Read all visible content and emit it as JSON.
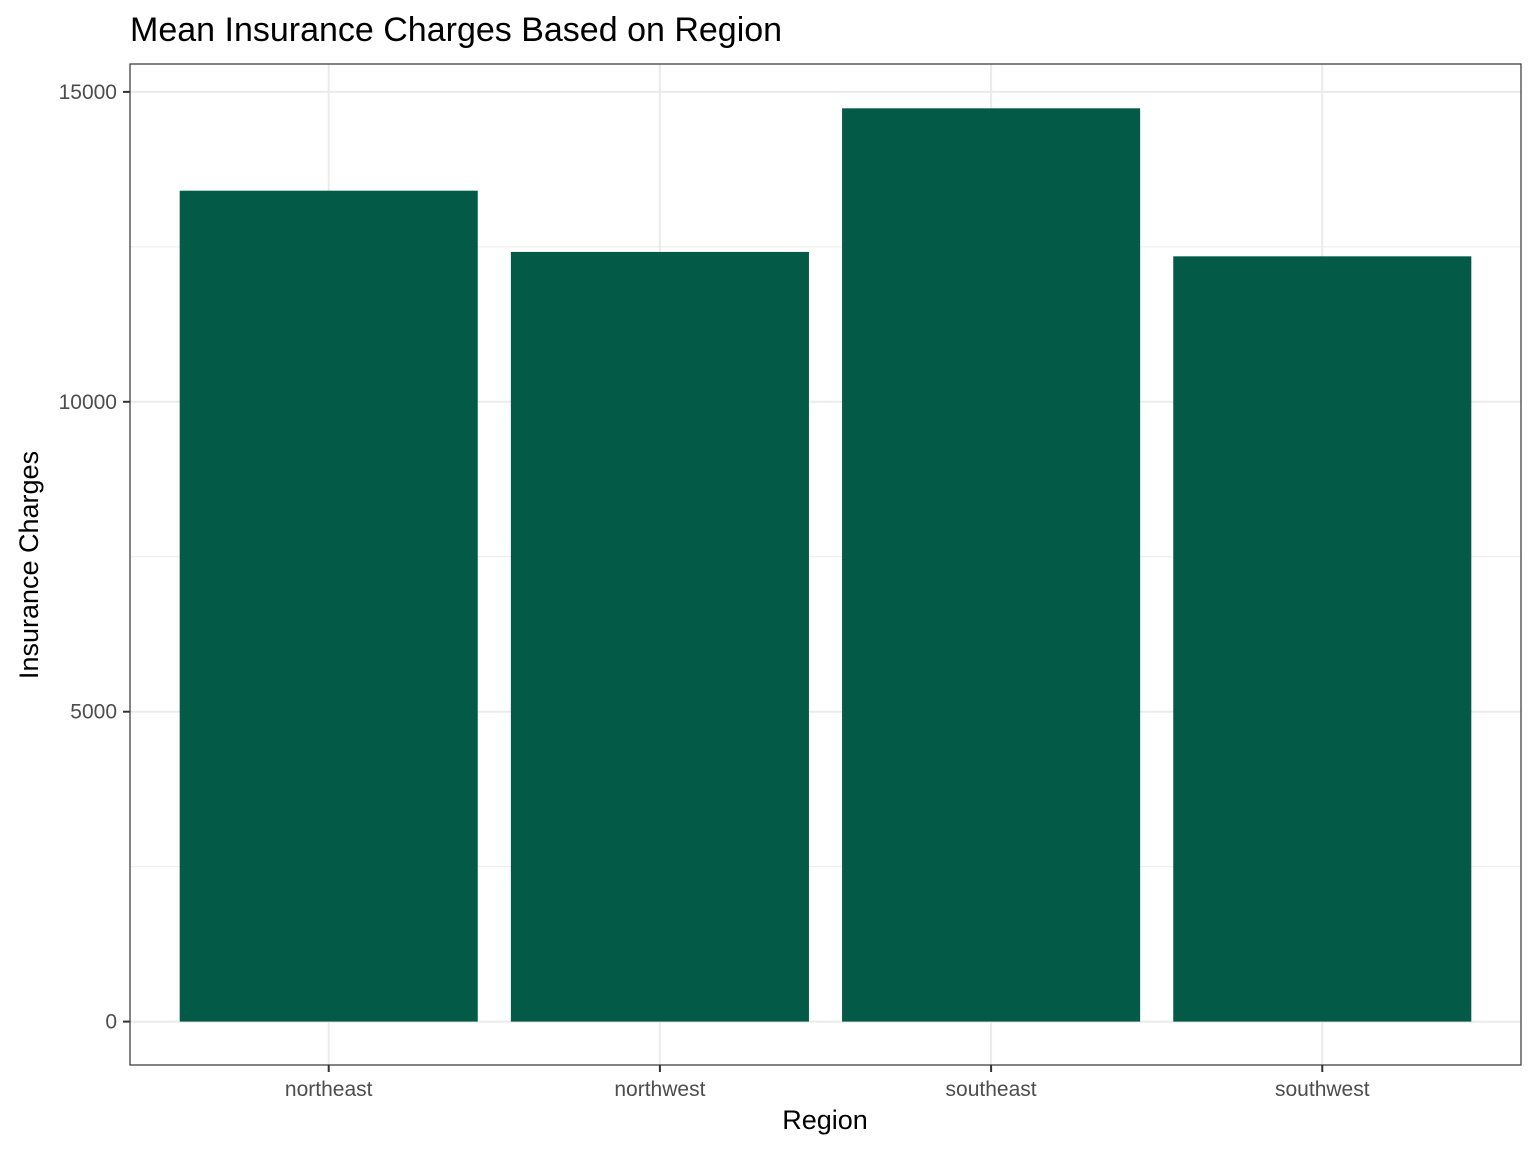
{
  "chart_data": {
    "type": "bar",
    "title": "Mean Insurance Charges Based on Region",
    "xlabel": "Region",
    "ylabel": "Insurance Charges",
    "categories": [
      "northeast",
      "northwest",
      "southeast",
      "southwest"
    ],
    "values": [
      13406,
      12418,
      14735,
      12347
    ],
    "ylim": [
      -700,
      15450
    ],
    "yticks": [
      0,
      5000,
      10000,
      15000
    ],
    "yticks_minor": [
      2500,
      7500,
      12500
    ],
    "grid": true,
    "legend": "none",
    "colors": {
      "bar": "#025a47",
      "grid": "#ebebeb",
      "panel_border": "#333333",
      "tick_text": "#4d4d4d"
    }
  }
}
